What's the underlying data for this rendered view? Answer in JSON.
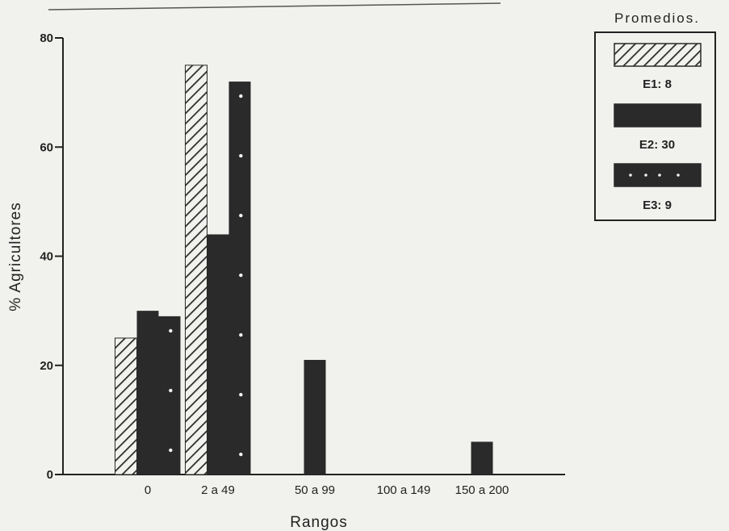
{
  "chart_data": {
    "type": "bar",
    "title": "",
    "xlabel": "Rangos",
    "ylabel": "% Agricultores",
    "ylim": [
      0,
      80
    ],
    "yticks": [
      0,
      20,
      40,
      60,
      80
    ],
    "categories": [
      "0",
      "2 a 49",
      "50 a 99",
      "100 a 149",
      "150 a 200"
    ],
    "series": [
      {
        "name": "E1: 8",
        "values": [
          25,
          75,
          0,
          0,
          0
        ],
        "fill": "hatch",
        "color": "#2a2a2a"
      },
      {
        "name": "E2: 30",
        "values": [
          30,
          44,
          21,
          0,
          6
        ],
        "fill": "solid",
        "color": "#2a2a2a"
      },
      {
        "name": "E3: 9",
        "values": [
          29,
          72,
          0,
          0,
          0
        ],
        "fill": "dotted",
        "color": "#2a2a2a"
      }
    ],
    "legend": {
      "title": "Promedios.",
      "position": "top-right"
    },
    "grid": false
  }
}
